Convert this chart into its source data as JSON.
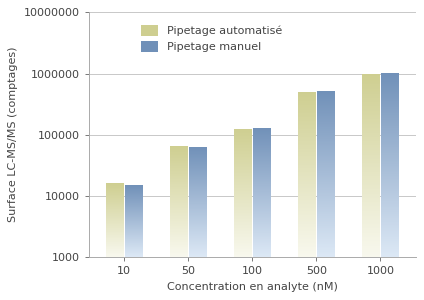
{
  "categories": [
    "10",
    "50",
    "100",
    "500",
    "1000"
  ],
  "auto_values": [
    16000,
    65000,
    125000,
    500000,
    980000
  ],
  "manual_values": [
    15000,
    63000,
    130000,
    520000,
    1020000
  ],
  "auto_color_top": "#cece90",
  "auto_color_bottom": "#f8f8ee",
  "manual_color_top": "#7090b8",
  "manual_color_bottom": "#dce8f5",
  "legend_auto": "Pipetage automatisé",
  "legend_manual": "Pipetage manuel",
  "xlabel": "Concentration en analyte (nM)",
  "ylabel": "Surface LC-MS/MS (comptages)",
  "ylim_min": 1000,
  "ylim_max": 10000000,
  "background_color": "#ffffff",
  "grid_color": "#c8c8c8",
  "bar_width": 0.28,
  "axis_fontsize": 8,
  "tick_fontsize": 8,
  "legend_fontsize": 8
}
